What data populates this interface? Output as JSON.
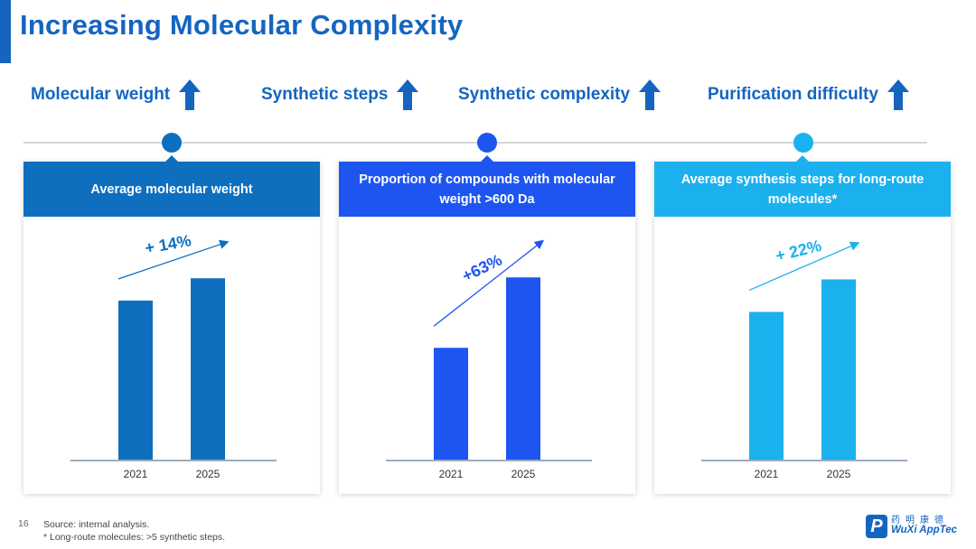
{
  "page": {
    "title": "Increasing Molecular Complexity",
    "page_number": "16",
    "source": "Source: internal analysis.",
    "footnote": "* Long-route molecules: >5 synthetic steps."
  },
  "metrics": [
    {
      "label": "Molecular weight",
      "icon": "arrow-up-icon"
    },
    {
      "label": "Synthetic steps",
      "icon": "arrow-up-icon"
    },
    {
      "label": "Synthetic complexity",
      "icon": "arrow-up-icon"
    },
    {
      "label": "Purification difficulty",
      "icon": "arrow-up-icon"
    }
  ],
  "colors": {
    "card1": "#0e6fbf",
    "card2": "#1e55f0",
    "card3": "#1ab1ee",
    "title": "#1565c0"
  },
  "cards": [
    {
      "heading": "Average molecular weight",
      "growth": "+ 14%"
    },
    {
      "heading": "Proportion of compounds with molecular weight >600 Da",
      "growth": "+63%"
    },
    {
      "heading": "Average synthesis steps for long-route molecules*",
      "growth": "+ 22%"
    }
  ],
  "chart_data": [
    {
      "type": "bar",
      "title": "Average molecular weight",
      "categories": [
        "2021",
        "2025"
      ],
      "values": [
        100,
        114
      ],
      "annotation": "+ 14%",
      "ylim": [
        0,
        130
      ],
      "grid": false
    },
    {
      "type": "bar",
      "title": "Proportion of compounds with molecular weight >600 Da",
      "categories": [
        "2021",
        "2025"
      ],
      "values": [
        100,
        163
      ],
      "annotation": "+63%",
      "ylim": [
        0,
        185
      ],
      "grid": false
    },
    {
      "type": "bar",
      "title": "Average synthesis steps for long-route molecules*",
      "categories": [
        "2021",
        "2025"
      ],
      "values": [
        100,
        122
      ],
      "annotation": "+ 22%",
      "ylim": [
        0,
        140
      ],
      "grid": false
    }
  ],
  "logo": {
    "mark": "P",
    "chinese": "药明康德",
    "english": "WuXi AppTec"
  }
}
